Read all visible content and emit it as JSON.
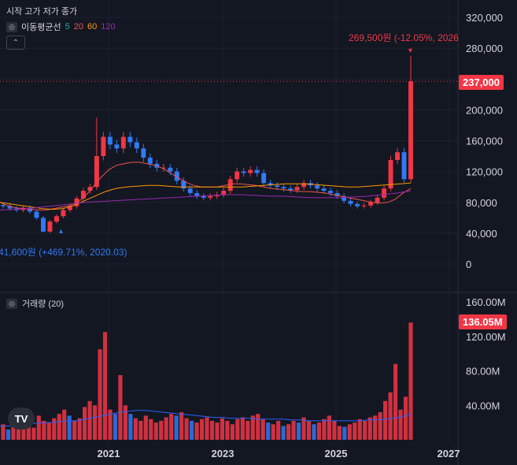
{
  "header": {
    "ohlc_label": "시작 고가 저가 종가",
    "ma_label": "이동평균선",
    "ma_periods": [
      "5",
      "20",
      "60",
      "120"
    ],
    "volume_label": "거래량 (20)"
  },
  "colors": {
    "background": "#131722",
    "up": "#f23645",
    "down": "#3179f5",
    "ma5": "#26a69a",
    "ma20": "#ef5350",
    "ma60": "#ff9800",
    "ma120": "#9c27b0",
    "volume_ma": "#2962ff",
    "grid": "#1e222d"
  },
  "chart_data": [
    {
      "type": "candlestick",
      "x_ticks": [
        "2021",
        "2023",
        "2025",
        "2027"
      ],
      "y_ticks": [
        "320,000",
        "280,000",
        "240,000",
        "200,000",
        "160,000",
        "120,000",
        "80,000",
        "40,000",
        "0"
      ],
      "ylim": [
        0,
        330000
      ],
      "last_price_label": "237,000",
      "last_price": 237000,
      "high_annotation": "269,500원 (-12.05%, 2026",
      "low_annotation": "41,600원 (+469.71%, 2020.03)",
      "period_high": 269500,
      "period_low": 41600,
      "closes_start": "2019.07",
      "closes": [
        75000,
        72000,
        70000,
        73000,
        68000,
        60000,
        42000,
        55000,
        62000,
        70000,
        75000,
        85000,
        95000,
        100000,
        140000,
        165000,
        155000,
        150000,
        165000,
        158000,
        150000,
        138000,
        130000,
        125000,
        125000,
        120000,
        108000,
        98000,
        92000,
        88000,
        86000,
        88000,
        90000,
        95000,
        110000,
        120000,
        118000,
        122000,
        118000,
        105000,
        102000,
        100000,
        98000,
        96000,
        100000,
        105000,
        102000,
        98000,
        95000,
        92000,
        88000,
        82000,
        78000,
        75000,
        76000,
        80000,
        86000,
        98000,
        135000,
        145000,
        110000,
        237000
      ],
      "ma20": [
        80000,
        76000,
        73000,
        72000,
        71000,
        70000,
        70000,
        72000,
        74000,
        76000,
        80000,
        88000,
        100000,
        112000,
        122000,
        128000,
        130000,
        132000,
        132000,
        130000,
        128000,
        124000,
        118000,
        112000,
        106000,
        102000,
        100000,
        100000,
        100000,
        102000,
        104000,
        104000,
        103000,
        102000,
        100000,
        98000,
        97000,
        96000,
        95000,
        94000,
        94000,
        93000,
        92000,
        90000,
        88000,
        86000,
        84000,
        82000,
        80000,
        79000,
        80000,
        84000,
        92000,
        98000
      ],
      "ma60": [
        80000,
        78000,
        76000,
        74000,
        72000,
        71000,
        72000,
        76000,
        82000,
        88000,
        94000,
        98000,
        100000,
        101000,
        102000,
        102000,
        101000,
        100000,
        100000,
        100000,
        100000,
        100000,
        100000,
        100000,
        101000,
        102000,
        103000,
        104000,
        104000,
        104000,
        103000,
        102000,
        101000,
        100000,
        100000,
        101000,
        102000,
        103000,
        104000,
        105000
      ],
      "ma120": [
        70000,
        71000,
        72000,
        74000,
        76000,
        78000,
        80000,
        81000,
        82000,
        83000,
        84000,
        85000,
        86000,
        87000,
        88000,
        89000,
        90000,
        90000,
        89000,
        88000,
        88000,
        87000,
        86000,
        86000,
        86000,
        87000,
        88000,
        90000,
        92000,
        95000
      ]
    },
    {
      "type": "bar",
      "title": "거래량 (20)",
      "y_ticks": [
        "160.00M",
        "120.00M",
        "80.00M",
        "40.00M"
      ],
      "ylim": [
        0,
        160000000
      ],
      "last_volume_label": "136.05M",
      "last_volume": 136050000,
      "values_M": [
        18,
        12,
        15,
        20,
        22,
        18,
        14,
        28,
        22,
        20,
        25,
        30,
        35,
        28,
        22,
        25,
        38,
        45,
        40,
        105,
        125,
        35,
        30,
        75,
        40,
        30,
        25,
        22,
        28,
        24,
        20,
        22,
        26,
        30,
        28,
        32,
        25,
        22,
        20,
        24,
        26,
        22,
        20,
        25,
        22,
        18,
        24,
        26,
        22,
        28,
        30,
        24,
        20,
        18,
        22,
        16,
        18,
        22,
        20,
        26,
        22,
        18,
        20,
        24,
        28,
        22,
        16,
        15,
        18,
        20,
        24,
        22,
        26,
        28,
        32,
        45,
        55,
        88,
        35,
        50,
        136
      ],
      "volume_ma_M": [
        16,
        16,
        17,
        18,
        19,
        20,
        20,
        21,
        22,
        22,
        24,
        26,
        28,
        30,
        32,
        33,
        34,
        34,
        33,
        32,
        31,
        30,
        29,
        28,
        27,
        26,
        26,
        25,
        25,
        25,
        24,
        24,
        24,
        24,
        23,
        23,
        22,
        22,
        22,
        22,
        22,
        22,
        22,
        23,
        23,
        24,
        25,
        27,
        30
      ]
    }
  ],
  "logo": {
    "text": "TV"
  }
}
